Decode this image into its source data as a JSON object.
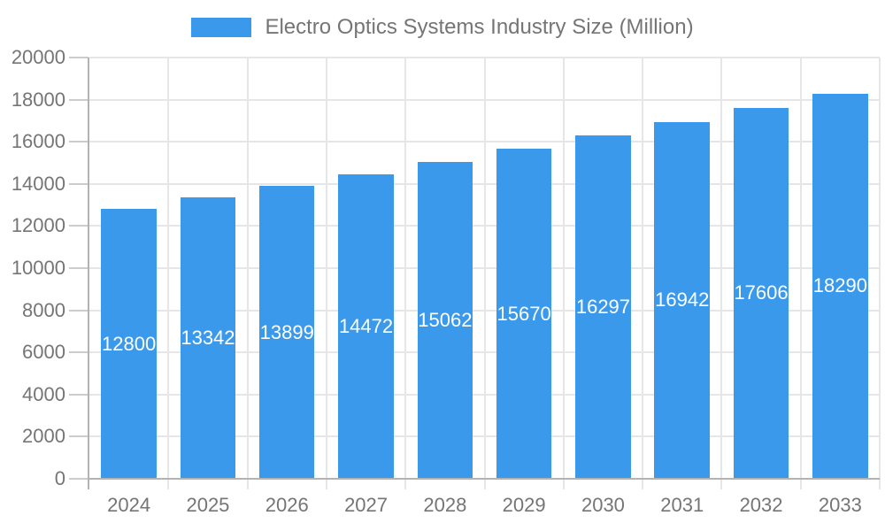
{
  "chart_data": {
    "type": "bar",
    "title": "Electro Optics Systems Industry Size (Million)",
    "categories": [
      "2024",
      "2025",
      "2026",
      "2027",
      "2028",
      "2029",
      "2030",
      "2031",
      "2032",
      "2033"
    ],
    "values": [
      12800,
      13342,
      13899,
      14472,
      15062,
      15670,
      16297,
      16942,
      17606,
      18290
    ],
    "xlabel": "",
    "ylabel": "",
    "ylim": [
      0,
      20000
    ],
    "y_ticks": [
      0,
      2000,
      4000,
      6000,
      8000,
      10000,
      12000,
      14000,
      16000,
      18000,
      20000
    ],
    "grid": "horizontal and vertical gridlines on",
    "legend_position": "top-center",
    "bar_color": "#3B99EC",
    "value_label_color": "#FFFFFF",
    "axis_label_color": "#757575",
    "gridline_color": "#E6E6E6",
    "axis_line_color": "#B3B3B3",
    "tick_color": "#CCCCCC"
  }
}
